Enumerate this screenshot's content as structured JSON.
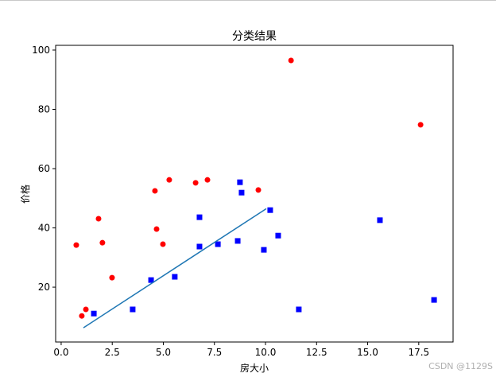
{
  "chart_data": {
    "type": "scatter",
    "title": "分类结果",
    "x_label": "房大小",
    "y_label": "价格",
    "xlim": [
      -0.27,
      19.18
    ],
    "ylim": [
      1.5,
      101.6
    ],
    "xticks": [
      {
        "value": 0,
        "label": "0.0"
      },
      {
        "value": 2.5,
        "label": "2.5"
      },
      {
        "value": 5,
        "label": "5.0"
      },
      {
        "value": 7.5,
        "label": "7.5"
      },
      {
        "value": 10,
        "label": "10.0"
      },
      {
        "value": 12.5,
        "label": "12.5"
      },
      {
        "value": 15,
        "label": "15.0"
      },
      {
        "value": 17.5,
        "label": "17.5"
      }
    ],
    "yticks": [
      20,
      40,
      60,
      80,
      100
    ],
    "series": [
      {
        "kind": "scatter",
        "marker": "circle",
        "color": "#ff0000",
        "x": [
          0.74,
          1.01,
          1.21,
          1.83,
          2.02,
          2.49,
          4.59,
          4.67,
          4.98,
          5.29,
          6.58,
          7.16,
          9.65,
          11.25,
          17.59
        ],
        "values": [
          34.2,
          10.3,
          12.5,
          43.1,
          35.0,
          23.2,
          52.5,
          39.6,
          34.5,
          56.2,
          55.2,
          56.2,
          52.8,
          96.5,
          74.8
        ]
      },
      {
        "kind": "scatter",
        "marker": "square",
        "color": "#0000ff",
        "x": [
          1.6,
          3.5,
          4.4,
          5.56,
          6.77,
          6.77,
          7.67,
          8.64,
          8.75,
          8.83,
          9.92,
          10.23,
          10.62,
          11.63,
          15.6,
          18.25
        ],
        "values": [
          11.1,
          12.5,
          22.4,
          23.5,
          43.6,
          33.7,
          34.5,
          35.6,
          55.4,
          51.9,
          32.6,
          46.0,
          37.4,
          12.5,
          42.6,
          15.7
        ]
      },
      {
        "kind": "line",
        "color": "#1f77b4",
        "x": [
          1.09,
          10.04
        ],
        "values": [
          6.3,
          46.5
        ]
      }
    ],
    "watermark": "CSDN @1129S"
  }
}
